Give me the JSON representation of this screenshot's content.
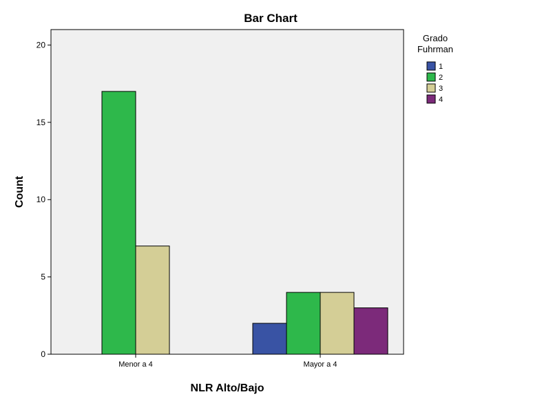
{
  "chart_data": {
    "type": "bar",
    "title": "Bar Chart",
    "xlabel": "NLR Alto/Bajo",
    "ylabel": "Count",
    "categories": [
      "Menor a 4",
      "Mayor a 4"
    ],
    "ylim": [
      0,
      21
    ],
    "yticks": [
      0,
      5,
      10,
      15,
      20
    ],
    "legend_title": [
      "Grado",
      "Fuhrman"
    ],
    "legend_position": "right",
    "grid": false,
    "series": [
      {
        "name": "1",
        "color": "#3953A4",
        "values": [
          0,
          2
        ]
      },
      {
        "name": "2",
        "color": "#2EB84B",
        "values": [
          17,
          4
        ]
      },
      {
        "name": "3",
        "color": "#D4CE96",
        "values": [
          7,
          4
        ]
      },
      {
        "name": "4",
        "color": "#7C2A7A",
        "values": [
          0,
          3
        ]
      }
    ],
    "plot_background": "#F0F0F0"
  }
}
